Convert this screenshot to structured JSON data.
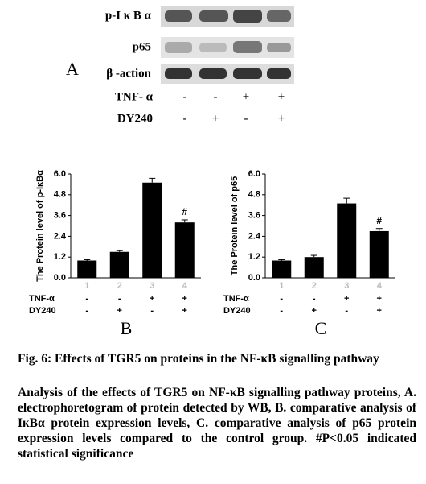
{
  "blot": {
    "panel": "A",
    "bands": [
      "p-I κ B α",
      "p65",
      "β -action"
    ],
    "rows": [
      {
        "label": "TNF- α",
        "signs": [
          "-",
          "-",
          "+",
          "+"
        ]
      },
      {
        "label": "DY240",
        "signs": [
          "-",
          "+",
          "-",
          "+"
        ]
      }
    ]
  },
  "chart_data": [
    {
      "type": "bar",
      "panel": "B",
      "ylabel": "The Protein level of p-IκBα",
      "categories": [
        "1",
        "2",
        "3",
        "4"
      ],
      "values": [
        1.0,
        1.5,
        5.5,
        3.2
      ],
      "errors": [
        0.05,
        0.07,
        0.25,
        0.15
      ],
      "color": "#000000",
      "ylim": [
        0,
        6
      ],
      "yticks": [
        {
          "value": 0,
          "label": "0.0"
        },
        1.2,
        2.4,
        3.6,
        4.8,
        {
          "value": 6,
          "label": "6.0"
        }
      ],
      "annotations": [
        null,
        null,
        null,
        "#"
      ],
      "rows": [
        {
          "label": "TNF-α",
          "signs": [
            "-",
            "-",
            "+",
            "+"
          ]
        },
        {
          "label": "DY240",
          "signs": [
            "-",
            "+",
            "-",
            "+"
          ]
        }
      ]
    },
    {
      "type": "bar",
      "panel": "C",
      "ylabel": "The Protein level of p65",
      "categories": [
        "1",
        "2",
        "3",
        "4"
      ],
      "values": [
        1.0,
        1.2,
        4.3,
        2.7
      ],
      "errors": [
        0.05,
        0.1,
        0.3,
        0.15
      ],
      "color": "#000000",
      "ylim": [
        0,
        6
      ],
      "yticks": [
        {
          "value": 0,
          "label": "0.0"
        },
        1.2,
        2.4,
        3.6,
        4.8,
        {
          "value": 6,
          "label": "6.0"
        }
      ],
      "annotations": [
        null,
        null,
        null,
        "#"
      ],
      "rows": [
        {
          "label": "TNF-α",
          "signs": [
            "-",
            "-",
            "+",
            "+"
          ]
        },
        {
          "label": "DY240",
          "signs": [
            "-",
            "+",
            "-",
            "+"
          ]
        }
      ]
    }
  ],
  "caption": {
    "title": "Fig. 6: Effects of TGR5 on proteins in the NF-κB signalling pathway",
    "body": "Analysis of the effects of TGR5 on NF-κB signalling pathway proteins, A. electrophoretogram of protein detected by WB, B. comparative analysis of IκBα protein expression levels, C. comparative analysis of p65 protein expression levels compared to the control group. #P<0.05 indicated statistical significance"
  }
}
